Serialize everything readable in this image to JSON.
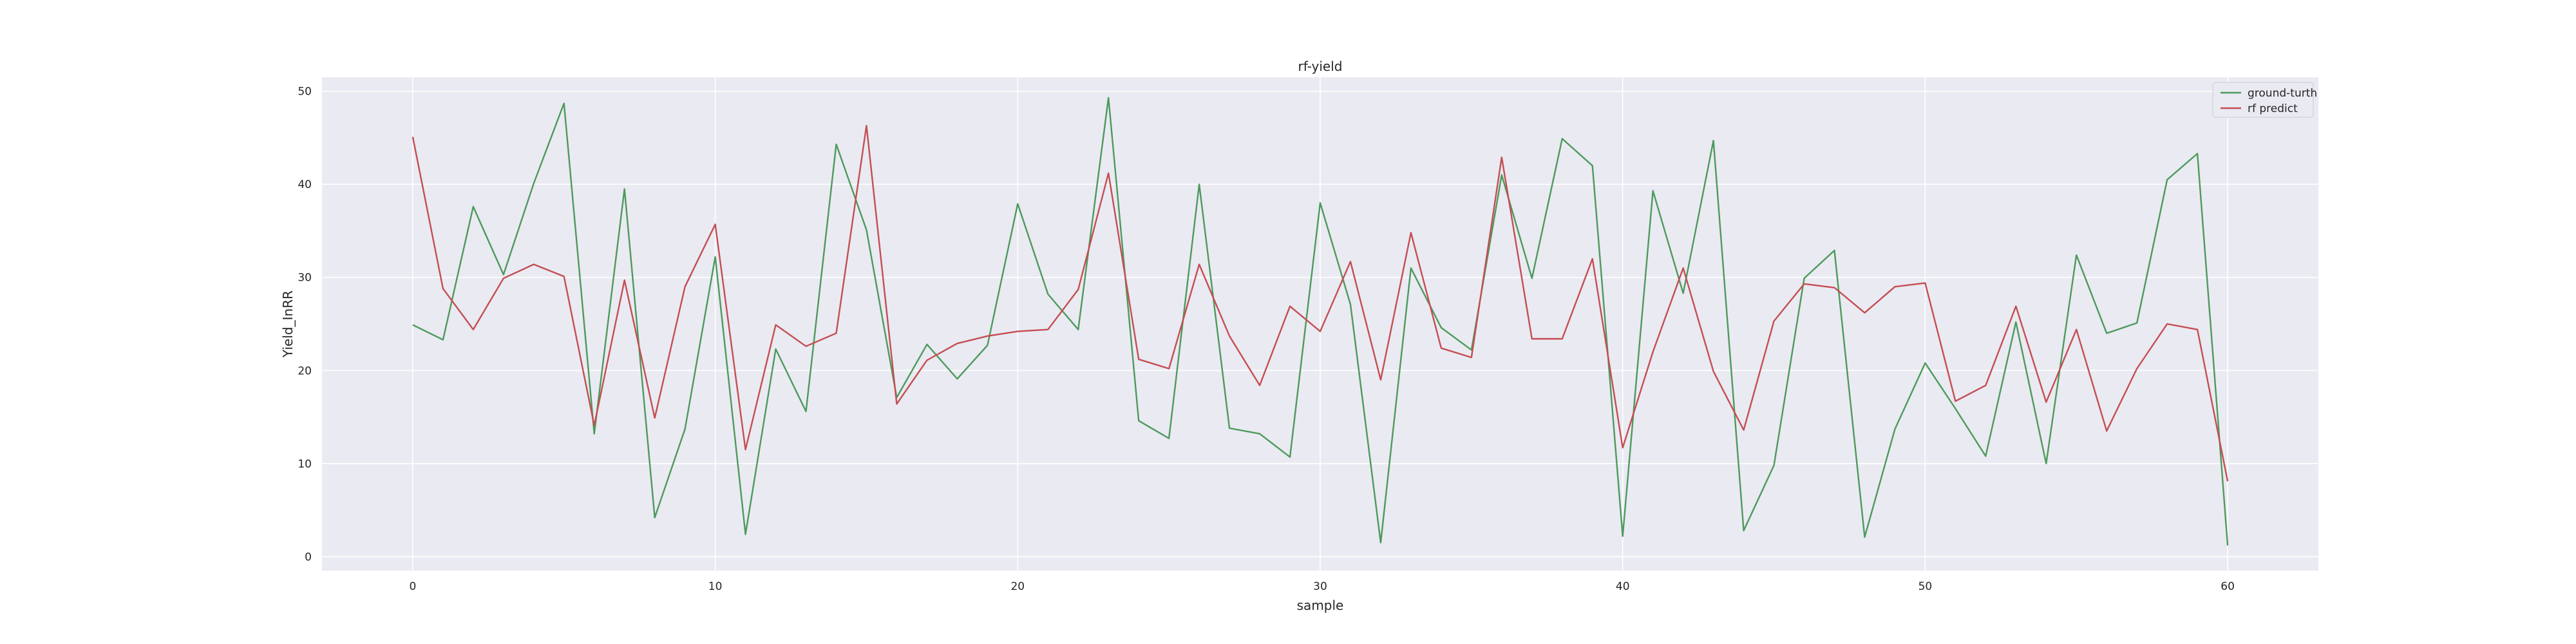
{
  "chart_data": {
    "type": "line",
    "title": "rf-yield",
    "xlabel": "sample",
    "ylabel": "Yield_InRR",
    "xlim": [
      -3,
      63
    ],
    "ylim": [
      -1.5,
      51.5
    ],
    "xticks": [
      0,
      10,
      20,
      30,
      40,
      50,
      60
    ],
    "yticks": [
      0,
      10,
      20,
      30,
      40,
      50
    ],
    "grid": true,
    "legend_position": "top-right",
    "background": "#eaeaf2",
    "x": [
      0,
      1,
      2,
      3,
      4,
      5,
      6,
      7,
      8,
      9,
      10,
      11,
      12,
      13,
      14,
      15,
      16,
      17,
      18,
      19,
      20,
      21,
      22,
      23,
      24,
      25,
      26,
      27,
      28,
      29,
      30,
      31,
      32,
      33,
      34,
      35,
      36,
      37,
      38,
      39,
      40,
      41,
      42,
      43,
      44,
      45,
      46,
      47,
      48,
      49,
      50,
      51,
      52,
      53,
      54,
      55,
      56,
      57,
      58,
      59,
      60
    ],
    "series": [
      {
        "name": "ground-turth",
        "color": "#4c9a5c",
        "values": [
          24.9,
          23.3,
          37.6,
          30.3,
          40.1,
          48.7,
          13.2,
          39.5,
          4.2,
          13.7,
          32.2,
          2.4,
          22.3,
          15.6,
          44.3,
          35.1,
          17.1,
          22.8,
          19.1,
          22.7,
          37.9,
          28.2,
          24.4,
          49.3,
          14.6,
          12.7,
          40.0,
          13.8,
          13.2,
          10.7,
          38.0,
          27.1,
          1.5,
          31.0,
          24.6,
          22.2,
          41.0,
          29.9,
          44.9,
          42.0,
          2.2,
          39.3,
          28.3,
          44.7,
          2.8,
          9.8,
          29.9,
          32.9,
          2.1,
          13.7,
          20.8,
          15.9,
          10.8,
          25.2,
          10.0,
          32.4,
          24.0,
          25.1,
          40.5,
          43.3,
          1.2
        ]
      },
      {
        "name": "rf predict",
        "color": "#c44e52",
        "values": [
          45.1,
          28.8,
          24.4,
          29.9,
          31.4,
          30.1,
          14.1,
          29.7,
          14.9,
          29.0,
          35.7,
          11.5,
          24.9,
          22.6,
          24.0,
          46.3,
          16.4,
          21.1,
          22.9,
          23.7,
          24.2,
          24.4,
          28.7,
          41.2,
          21.2,
          20.2,
          31.4,
          23.7,
          18.4,
          26.9,
          24.2,
          31.7,
          19.0,
          34.8,
          22.4,
          21.4,
          42.9,
          23.4,
          23.4,
          32.0,
          11.7,
          22.0,
          31.0,
          19.9,
          13.6,
          25.3,
          29.3,
          28.9,
          26.2,
          29.0,
          29.4,
          16.7,
          18.4,
          26.9,
          16.6,
          24.4,
          13.5,
          20.2,
          25.0,
          24.4,
          8.1
        ]
      }
    ]
  }
}
